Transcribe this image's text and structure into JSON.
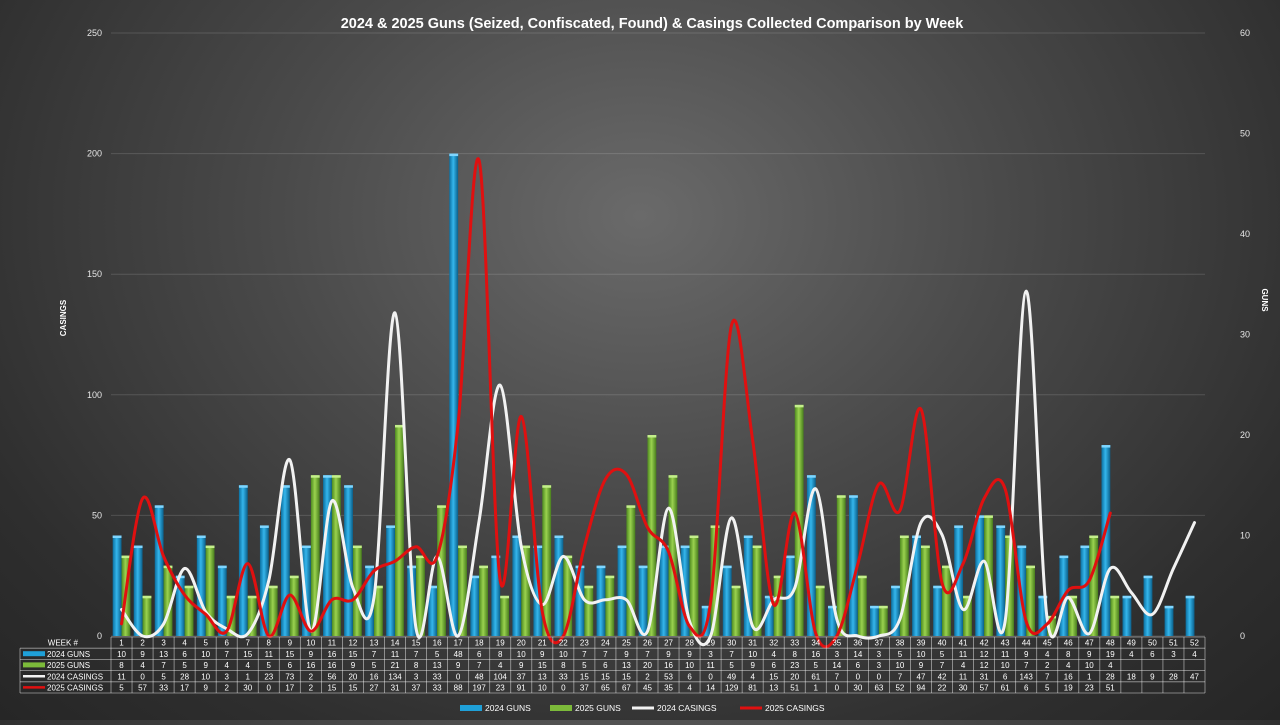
{
  "chart_data": {
    "type": "bar",
    "title": "2024 & 2025 Guns (Seized, Confiscated, Found) & Casings Collected Comparison by Week",
    "left_axis_label": "CASINGS",
    "right_axis_label": "GUNS",
    "left_ylim": [
      0,
      250
    ],
    "right_ylim": [
      0,
      60
    ],
    "left_ticks": [
      0,
      50,
      100,
      150,
      200,
      250
    ],
    "right_ticks": [
      0,
      10,
      20,
      30,
      40,
      50,
      60
    ],
    "grid": true,
    "legend_position": "bottom",
    "table_header_label": "WEEK #",
    "categories": [
      "1",
      "2",
      "3",
      "4",
      "5",
      "6",
      "7",
      "8",
      "9",
      "10",
      "11",
      "12",
      "13",
      "14",
      "15",
      "16",
      "17",
      "18",
      "19",
      "20",
      "21",
      "22",
      "23",
      "24",
      "25",
      "26",
      "27",
      "28",
      "29",
      "30",
      "31",
      "32",
      "33",
      "34",
      "35",
      "36",
      "37",
      "38",
      "39",
      "40",
      "41",
      "42",
      "43",
      "44",
      "45",
      "46",
      "47",
      "48",
      "49",
      "50",
      "51",
      "52"
    ],
    "series": [
      {
        "name": "2024 GUNS",
        "kind": "bar",
        "axis": "right",
        "color": "#1fa0d8",
        "values": [
          10,
          9,
          13,
          6,
          10,
          7,
          15,
          11,
          15,
          9,
          16,
          15,
          7,
          11,
          7,
          5,
          48,
          6,
          8,
          10,
          9,
          10,
          7,
          7,
          9,
          7,
          9,
          9,
          3,
          7,
          10,
          4,
          8,
          16,
          3,
          14,
          3,
          5,
          10,
          5,
          11,
          12,
          11,
          9,
          4,
          8,
          9,
          19,
          4,
          6,
          3,
          4
        ]
      },
      {
        "name": "2025 GUNS",
        "kind": "bar",
        "axis": "right",
        "color": "#7cba3a",
        "values": [
          8,
          4,
          7,
          5,
          9,
          4,
          4,
          5,
          6,
          16,
          16,
          9,
          5,
          21,
          8,
          13,
          9,
          7,
          4,
          9,
          15,
          8,
          5,
          6,
          13,
          20,
          16,
          10,
          11,
          5,
          9,
          6,
          23,
          5,
          14,
          6,
          3,
          10,
          9,
          7,
          4,
          12,
          10,
          7,
          2,
          4,
          10,
          4,
          null,
          null,
          null,
          null
        ]
      },
      {
        "name": "2024 CASINGS",
        "kind": "line",
        "axis": "left",
        "color": "#f2f2f2",
        "values": [
          11,
          0,
          5,
          28,
          10,
          3,
          1,
          23,
          73,
          2,
          56,
          20,
          16,
          134,
          3,
          33,
          0,
          48,
          104,
          37,
          13,
          33,
          15,
          15,
          15,
          2,
          53,
          6,
          0,
          49,
          4,
          15,
          20,
          61,
          7,
          0,
          0,
          7,
          47,
          42,
          11,
          31,
          6,
          143,
          7,
          16,
          1,
          28,
          18,
          9,
          28,
          47
        ]
      },
      {
        "name": "2025 CASINGS",
        "kind": "line",
        "axis": "left",
        "color": "#e01010",
        "values": [
          5,
          57,
          33,
          17,
          9,
          2,
          30,
          0,
          17,
          2,
          15,
          15,
          27,
          31,
          37,
          33,
          88,
          197,
          23,
          91,
          10,
          0,
          37,
          65,
          67,
          45,
          35,
          4,
          14,
          129,
          81,
          13,
          51,
          1,
          0,
          30,
          63,
          52,
          94,
          22,
          30,
          57,
          61,
          6,
          5,
          19,
          23,
          51,
          null,
          null,
          null,
          null
        ]
      }
    ]
  }
}
